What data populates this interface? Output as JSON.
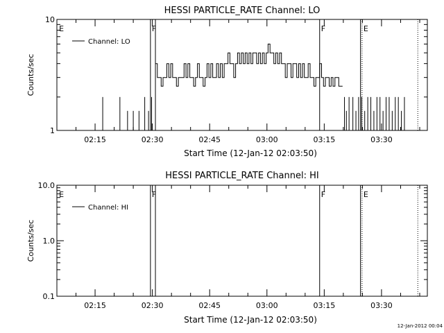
{
  "footer_date": "12-Jan-2012 00:04",
  "chart_data": [
    {
      "type": "line",
      "title": "HESSI PARTICLE_RATE Channel: LO",
      "xlabel": "Start Time (12-Jan-12 02:03:50)",
      "ylabel": "Counts/sec",
      "yscale": "log",
      "ylim": [
        1,
        10
      ],
      "ytick_labels": [
        {
          "value": 10,
          "label": "10"
        },
        {
          "value": 1,
          "label": "1"
        }
      ],
      "xlim": [
        5,
        102
      ],
      "x_tick_labels": [
        "02:15",
        "02:30",
        "02:45",
        "03:00",
        "03:15",
        "03:30"
      ],
      "x_tick_minutes": [
        15,
        30,
        45,
        60,
        75,
        90
      ],
      "legend": "top-left",
      "series": [
        {
          "name": "Channel: LO",
          "x": [
            30.8,
            31.3,
            31.8,
            32.3,
            32.8,
            33.3,
            33.8,
            34.3,
            34.8,
            35.3,
            35.8,
            36.3,
            36.8,
            37.3,
            37.8,
            38.3,
            38.8,
            39.3,
            39.8,
            40.3,
            40.8,
            41.3,
            41.8,
            42.3,
            42.8,
            43.3,
            43.8,
            44.3,
            44.8,
            45.3,
            45.8,
            46.3,
            46.8,
            47.3,
            47.8,
            48.3,
            48.8,
            49.3,
            49.8,
            50.3,
            50.8,
            51.3,
            51.8,
            52.3,
            52.8,
            53.3,
            53.8,
            54.3,
            54.8,
            55.3,
            55.8,
            56.3,
            56.8,
            57.3,
            57.8,
            58.3,
            58.8,
            59.3,
            59.8,
            60.3,
            60.8,
            61.3,
            61.8,
            62.3,
            62.8,
            63.3,
            63.8,
            64.3,
            64.8,
            65.3,
            65.8,
            66.3,
            66.8,
            67.3,
            67.8,
            68.3,
            68.8,
            69.3,
            69.8,
            70.3,
            70.8,
            71.3,
            71.8,
            72.3,
            72.8,
            73.3,
            73.8,
            74.3,
            74.8,
            75.3,
            75.8,
            76.3,
            76.8,
            77.3,
            77.8,
            78.3,
            78.8,
            79.3,
            79.8
          ],
          "values": [
            4,
            3,
            3,
            2.5,
            3,
            3,
            4,
            3,
            4,
            3,
            3,
            2.5,
            3,
            3,
            3,
            4,
            3,
            4,
            3,
            3,
            2.5,
            3,
            4,
            3,
            3,
            2.5,
            3,
            4,
            3,
            4,
            3,
            3,
            4,
            3,
            4,
            3,
            4,
            4,
            5,
            4,
            4,
            3,
            4,
            5,
            4,
            5,
            4,
            5,
            4,
            5,
            4,
            5,
            5,
            4,
            5,
            4,
            5,
            4,
            5,
            6,
            5,
            5,
            4,
            5,
            4,
            5,
            4,
            4,
            3,
            4,
            4,
            3,
            4,
            4,
            3,
            4,
            3,
            4,
            3,
            3,
            4,
            3,
            3,
            2.5,
            3,
            3,
            4,
            3,
            2.5,
            3,
            3,
            2.5,
            3,
            2.5,
            3,
            3,
            2.5,
            2.5,
            2.5
          ]
        }
      ],
      "spikes": [
        {
          "x": 17.0,
          "y": 2.0
        },
        {
          "x": 21.5,
          "y": 2.0
        },
        {
          "x": 23.5,
          "y": 1.5
        },
        {
          "x": 25.0,
          "y": 1.5
        },
        {
          "x": 26.5,
          "y": 1.5
        },
        {
          "x": 28.0,
          "y": 2.0
        },
        {
          "x": 29.0,
          "y": 1.5
        },
        {
          "x": 29.8,
          "y": 2.0
        },
        {
          "x": 80.3,
          "y": 2.0
        },
        {
          "x": 80.8,
          "y": 1.5
        },
        {
          "x": 81.5,
          "y": 2.0
        },
        {
          "x": 82.5,
          "y": 2.0
        },
        {
          "x": 83.3,
          "y": 1.5
        },
        {
          "x": 84.0,
          "y": 2.0
        },
        {
          "x": 84.8,
          "y": 2.0
        },
        {
          "x": 85.6,
          "y": 1.5
        },
        {
          "x": 86.4,
          "y": 2.0
        },
        {
          "x": 87.2,
          "y": 2.0
        },
        {
          "x": 88.0,
          "y": 1.5
        },
        {
          "x": 88.8,
          "y": 2.0
        },
        {
          "x": 89.6,
          "y": 2.0
        },
        {
          "x": 90.4,
          "y": 1.5
        },
        {
          "x": 91.2,
          "y": 2.0
        },
        {
          "x": 92.0,
          "y": 2.0
        },
        {
          "x": 92.8,
          "y": 1.5
        },
        {
          "x": 93.6,
          "y": 2.0
        },
        {
          "x": 94.4,
          "y": 2.0
        },
        {
          "x": 95.2,
          "y": 1.5
        },
        {
          "x": 96.0,
          "y": 2.0
        }
      ],
      "markers": [
        {
          "label": "E",
          "x": 5.2,
          "style": "none"
        },
        {
          "label": "F",
          "x": 29.5,
          "style": "solid"
        },
        {
          "label": "",
          "x": 30.8,
          "style": "solid"
        },
        {
          "label": "F",
          "x": 73.8,
          "style": "solid"
        },
        {
          "label": "",
          "x": 84.5,
          "style": "solid"
        },
        {
          "label": "E",
          "x": 84.9,
          "style": "dotted"
        },
        {
          "label": "",
          "x": 99.5,
          "style": "dotted"
        }
      ]
    },
    {
      "type": "line",
      "title": "HESSI PARTICLE_RATE Channel: HI",
      "xlabel": "Start Time (12-Jan-12 02:03:50)",
      "ylabel": "Counts/sec",
      "yscale": "log",
      "ylim": [
        0.1,
        10
      ],
      "ytick_labels": [
        {
          "value": 10,
          "label": "10.0"
        },
        {
          "value": 1,
          "label": "1.0"
        },
        {
          "value": 0.1,
          "label": "0.1"
        }
      ],
      "xlim": [
        5,
        102
      ],
      "x_tick_labels": [
        "02:15",
        "02:30",
        "02:45",
        "03:00",
        "03:15",
        "03:30"
      ],
      "x_tick_minutes": [
        15,
        30,
        45,
        60,
        75,
        90
      ],
      "legend": "top-left",
      "series": [
        {
          "name": "Channel: HI",
          "x": [],
          "values": []
        }
      ],
      "spikes": [],
      "markers": [
        {
          "label": "E",
          "x": 5.2,
          "style": "none"
        },
        {
          "label": "F",
          "x": 29.5,
          "style": "solid"
        },
        {
          "label": "",
          "x": 30.8,
          "style": "solid"
        },
        {
          "label": "F",
          "x": 73.8,
          "style": "solid"
        },
        {
          "label": "",
          "x": 84.5,
          "style": "solid"
        },
        {
          "label": "E",
          "x": 84.9,
          "style": "dotted"
        },
        {
          "label": "",
          "x": 99.5,
          "style": "dotted"
        }
      ]
    }
  ]
}
